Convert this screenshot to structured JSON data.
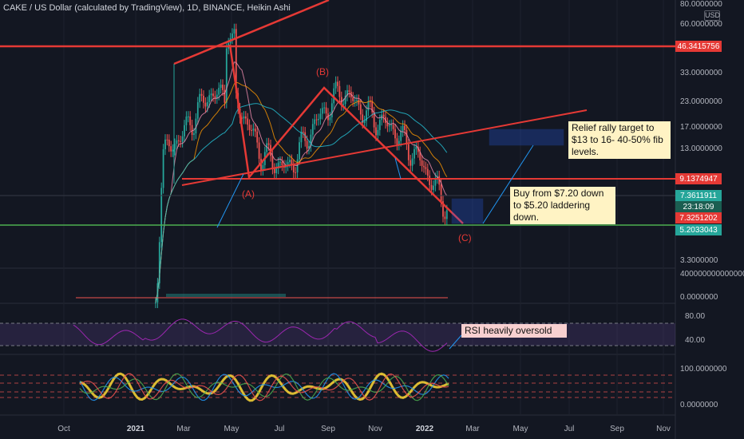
{
  "header": {
    "title": "CAKE / US Dollar (calculated by TradingView), 1D, BINANCE, Heikin Ashi",
    "currency": "USD"
  },
  "price_axis": {
    "labels": [
      "80.0000000",
      "60.0000000",
      "33.0000000",
      "23.0000000",
      "17.0000000",
      "13.0000000",
      "3.3000000"
    ],
    "badges": [
      {
        "text": "46.3415756",
        "color": "#e53935"
      },
      {
        "text": "9.1374947",
        "color": "#e53935"
      },
      {
        "text": "7.3611911",
        "color": "#26a69a"
      },
      {
        "text": "23:18:09",
        "color": "#1b5e51"
      },
      {
        "text": "7.3251202",
        "color": "#e53935"
      },
      {
        "text": "5.2033043",
        "color": "#26a69a"
      }
    ]
  },
  "volume_axis": {
    "labels": [
      "4000000000000000",
      "0.0000000"
    ]
  },
  "rsi_axis": {
    "labels": [
      "80.00",
      "40.00"
    ]
  },
  "stoch_axis": {
    "labels": [
      "100.0000000",
      "0.0000000"
    ]
  },
  "annotations": {
    "relief": "Relief rally target to $13 to 16- 40-50% fib levels.",
    "buy": "Buy from $7.20 down to $5.20 laddering down.",
    "rsi": "RSI heavily oversold",
    "wave_a": "(A)",
    "wave_b": "(B)",
    "wave_c": "(C)"
  },
  "time_axis": [
    "Oct",
    "2021",
    "Mar",
    "May",
    "Jul",
    "Sep",
    "Nov",
    "2022",
    "Mar",
    "May",
    "Jul",
    "Sep",
    "Nov"
  ],
  "colors": {
    "background": "#131722",
    "up": "#26a69a",
    "down": "#ef5350",
    "trend": "#e53935",
    "support": "#4caf50",
    "arrow": "#2196f3",
    "rsi_band": "#7e57c2",
    "rsi_line": "#9c27b0"
  },
  "chart_data": {
    "type": "candlestick",
    "title": "CAKE / US Dollar (calculated by TradingView), 1D, BINANCE, Heikin Ashi",
    "x": [
      "2021-02",
      "2021-03",
      "2021-04",
      "2021-05",
      "2021-06",
      "2021-07",
      "2021-08",
      "2021-09",
      "2021-10",
      "2021-11",
      "2021-12",
      "2022-01"
    ],
    "close": [
      12,
      16,
      25,
      24,
      13,
      11,
      18,
      26,
      20,
      17,
      12,
      7.3
    ],
    "levels": [
      46.3415756,
      9.1374947,
      5.2033043
    ],
    "wave_points": {
      "A": 9.1,
      "B": 28,
      "C": 5.2
    },
    "yscale": "log"
  }
}
